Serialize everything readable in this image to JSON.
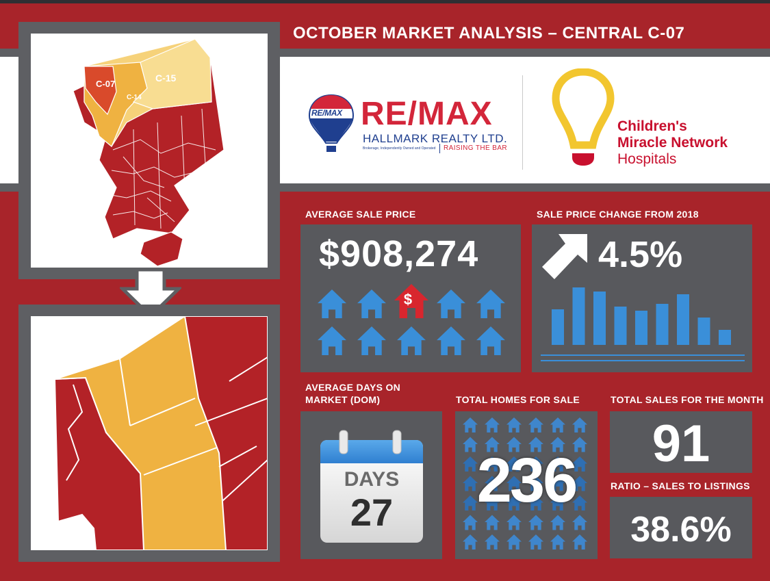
{
  "header": {
    "title": "OCTOBER MARKET ANALYSIS – CENTRAL C-07"
  },
  "map": {
    "zone_labels": [
      "C-07",
      "C-14",
      "C-15"
    ]
  },
  "remax": {
    "balloon_text": "RE/MAX",
    "name": "RE/MAX",
    "company": "HALLMARK REALTY LTD.",
    "fineprint": "Brokerage, Independently Owned and Operated",
    "tagline": "RAISING THE BAR"
  },
  "cmn": {
    "line1": "Children's",
    "line2": "Miracle Network",
    "line3": "Hospitals"
  },
  "stats": {
    "avg_price_label": "AVERAGE SALE PRICE",
    "avg_price_value": "$908,274",
    "price_change_label": "SALE PRICE CHANGE FROM 2018",
    "price_change_value": "4.5%",
    "dom_label_line1": "AVERAGE DAYS ON",
    "dom_label_line2": "MARKET (DOM)",
    "dom_days_word": "DAYS",
    "dom_value": "27",
    "homes_label": "TOTAL HOMES FOR SALE",
    "homes_value": "236",
    "sales_label": "TOTAL SALES FOR THE MONTH",
    "sales_value": "91",
    "ratio_label": "RATIO – SALES TO LISTINGS",
    "ratio_value": "38.6%"
  },
  "price_dollar_symbol": "$",
  "colors": {
    "background_red": "#a8242a",
    "panel_gray": "#58595d",
    "map_red": "#b32227",
    "map_orange": "#efb241",
    "house_blue": "#3a8fd9",
    "cmn_red": "#c8102e",
    "cmn_yellow": "#f2c62f",
    "remax_blue": "#1f3f8f",
    "remax_red": "#d3263a"
  },
  "icons": [
    "arrow-down-icon",
    "house-icon",
    "dollar-house-icon",
    "trend-up-arrow-icon",
    "bar-chart-icon",
    "calendar-icon",
    "lightbulb-icon",
    "hot-air-balloon-icon"
  ]
}
